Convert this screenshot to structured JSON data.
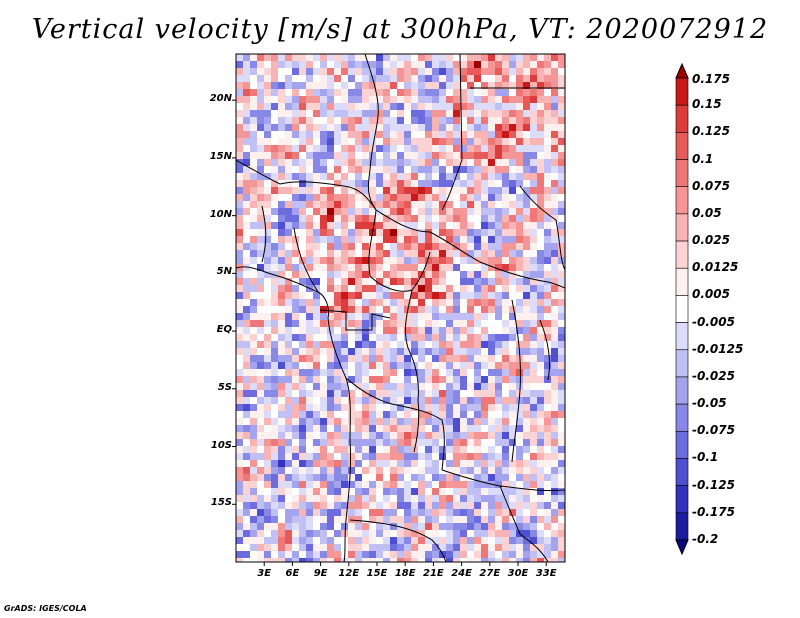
{
  "title": "Vertical velocity [m/s] at 300hPa, VT: 2020072912",
  "credit": "GrADS: IGES/COLA",
  "map": {
    "lon_range": [
      0,
      35
    ],
    "lat_range": [
      -20,
      24
    ],
    "lat_ticks": [
      "20N",
      "15N",
      "10N",
      "5N",
      "EQ",
      "5S",
      "10S",
      "15S"
    ],
    "lat_tick_values": [
      20,
      15,
      10,
      5,
      0,
      -5,
      -10,
      -15
    ],
    "lon_ticks": [
      "3E",
      "6E",
      "9E",
      "12E",
      "15E",
      "18E",
      "21E",
      "24E",
      "27E",
      "30E",
      "33E"
    ],
    "lon_tick_values": [
      3,
      6,
      9,
      12,
      15,
      18,
      21,
      24,
      27,
      30,
      33
    ]
  },
  "colorbar": {
    "labels": [
      "0.175",
      "0.15",
      "0.125",
      "0.1",
      "0.075",
      "0.05",
      "0.025",
      "0.0125",
      "0.005",
      "-0.005",
      "-0.0125",
      "-0.025",
      "-0.05",
      "-0.075",
      "-0.1",
      "-0.125",
      "-0.175",
      "-0.2"
    ],
    "colors": [
      "#a00000",
      "#c81818",
      "#dc3c3c",
      "#e65a5a",
      "#ee7878",
      "#f49696",
      "#f8b4b4",
      "#fcd2d2",
      "#fff0f0",
      "#ffffff",
      "#dcdcfa",
      "#c0c0f4",
      "#a4a4ee",
      "#8888e6",
      "#6c6cde",
      "#4e4ed2",
      "#3232be",
      "#1c1ca0",
      "#0a0a80"
    ]
  }
}
